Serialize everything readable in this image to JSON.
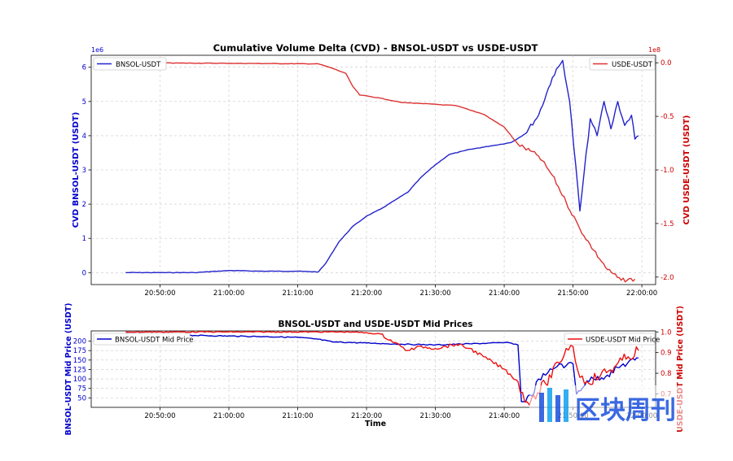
{
  "chart_data": [
    {
      "type": "line",
      "title": "Cumulative Volume Delta (CVD) - BNSOL-USDT vs USDE-USDT",
      "xlabel": "",
      "x_ticks": [
        "20:50:00",
        "21:00:00",
        "21:10:00",
        "21:20:00",
        "21:30:00",
        "21:40:00",
        "21:50:00",
        "22:00:00"
      ],
      "xlim": [
        "20:40:00",
        "22:02:00"
      ],
      "left_axis": {
        "ylabel": "CVD BNSOL-USDT (USDT)",
        "multiplier": "1e6",
        "ylim": [
          -0.35,
          6.35
        ],
        "ticks": [
          "0",
          "1",
          "2",
          "3",
          "4",
          "5",
          "6"
        ],
        "color": "#0000cc"
      },
      "right_axis": {
        "ylabel": "CVD USDE-USDT (USDT)",
        "multiplier": "1e8",
        "ylim": [
          -2.07,
          0.07
        ],
        "ticks": [
          "0.0",
          "-0.5",
          "-1.0",
          "-1.5",
          "-2.0"
        ],
        "color": "#cc0000"
      },
      "series": [
        {
          "name": "BNSOL-USDT",
          "axis": "left",
          "color": "#2222cc",
          "legend": "top-left",
          "points": [
            [
              "20:45:00",
              0.0
            ],
            [
              "20:55:00",
              0.0
            ],
            [
              "21:00:00",
              0.06
            ],
            [
              "21:05:00",
              0.04
            ],
            [
              "21:10:00",
              0.04
            ],
            [
              "21:13:00",
              0.02
            ],
            [
              "21:14:00",
              0.25
            ],
            [
              "21:16:00",
              0.9
            ],
            [
              "21:18:00",
              1.35
            ],
            [
              "21:20:00",
              1.65
            ],
            [
              "21:22:00",
              1.85
            ],
            [
              "21:24:00",
              2.1
            ],
            [
              "21:26:00",
              2.35
            ],
            [
              "21:28:00",
              2.8
            ],
            [
              "21:30:00",
              3.15
            ],
            [
              "21:32:00",
              3.45
            ],
            [
              "21:35:00",
              3.6
            ],
            [
              "21:38:00",
              3.7
            ],
            [
              "21:41:00",
              3.8
            ],
            [
              "21:43:00",
              4.05
            ],
            [
              "21:45:00",
              4.6
            ],
            [
              "21:47:00",
              5.7
            ],
            [
              "21:48:30",
              6.2
            ],
            [
              "21:49:30",
              5.0
            ],
            [
              "21:51:00",
              1.8
            ],
            [
              "21:52:30",
              4.5
            ],
            [
              "21:53:30",
              4.0
            ],
            [
              "21:54:30",
              5.0
            ],
            [
              "21:55:30",
              4.2
            ],
            [
              "21:56:30",
              5.0
            ],
            [
              "21:57:30",
              4.3
            ],
            [
              "21:58:30",
              4.6
            ],
            [
              "21:59:00",
              3.9
            ],
            [
              "21:59:30",
              4.0
            ]
          ]
        },
        {
          "name": "USDE-USDT",
          "axis": "right",
          "color": "#dd3333",
          "legend": "top-right",
          "points": [
            [
              "20:45:00",
              0.0
            ],
            [
              "21:00:00",
              -0.005
            ],
            [
              "21:13:00",
              -0.01
            ],
            [
              "21:15:00",
              -0.05
            ],
            [
              "21:17:00",
              -0.1
            ],
            [
              "21:18:00",
              -0.22
            ],
            [
              "21:19:00",
              -0.3
            ],
            [
              "21:22:00",
              -0.33
            ],
            [
              "21:25:00",
              -0.37
            ],
            [
              "21:28:00",
              -0.38
            ],
            [
              "21:33:00",
              -0.4
            ],
            [
              "21:37:00",
              -0.48
            ],
            [
              "21:40:00",
              -0.6
            ],
            [
              "21:42:00",
              -0.76
            ],
            [
              "21:45:00",
              -0.87
            ],
            [
              "21:47:00",
              -1.05
            ],
            [
              "21:49:00",
              -1.3
            ],
            [
              "21:51:00",
              -1.55
            ],
            [
              "21:53:00",
              -1.75
            ],
            [
              "21:55:00",
              -1.93
            ],
            [
              "21:57:00",
              -2.03
            ],
            [
              "21:59:00",
              -2.02
            ]
          ]
        }
      ]
    },
    {
      "type": "line",
      "title": "BNSOL-USDT and USDE-USDT Mid Prices",
      "xlabel": "Time",
      "x_ticks": [
        "20:50:00",
        "21:00:00",
        "21:10:00",
        "21:20:00",
        "21:30:00",
        "21:40:00",
        "21:50:00",
        "22:00:00"
      ],
      "xlim": [
        "20:40:00",
        "22:02:00"
      ],
      "left_axis": {
        "ylabel": "BNSOL-USDT Mid Price (USDT)",
        "ylim": [
          25,
          227
        ],
        "ticks": [
          "50",
          "75",
          "100",
          "125",
          "150",
          "175",
          "200"
        ],
        "color": "#0000cc"
      },
      "right_axis": {
        "ylabel": "USDE-USDT Mid Price (USDT)",
        "ylim": [
          0.635,
          1.005
        ],
        "ticks": [
          "0.7",
          "0.8",
          "0.9",
          "1.0"
        ],
        "color": "#cc0000"
      },
      "series": [
        {
          "name": "BNSOL-USDT Mid Price",
          "axis": "left",
          "color": "#0000cc",
          "legend": "top-left",
          "points": [
            [
              "20:45:00",
              220
            ],
            [
              "20:55:00",
              215
            ],
            [
              "21:05:00",
              212
            ],
            [
              "21:10:00",
              210
            ],
            [
              "21:13:00",
              205
            ],
            [
              "21:15:00",
              198
            ],
            [
              "21:20:00",
              195
            ],
            [
              "21:25:00",
              192
            ],
            [
              "21:30:00",
              190
            ],
            [
              "21:35:00",
              193
            ],
            [
              "21:40:00",
              196
            ],
            [
              "21:41:00",
              195
            ],
            [
              "21:42:00",
              190
            ],
            [
              "21:42:30",
              40
            ],
            [
              "21:44:00",
              55
            ],
            [
              "21:45:00",
              100
            ],
            [
              "21:46:00",
              110
            ],
            [
              "21:47:00",
              125
            ],
            [
              "21:48:00",
              140
            ],
            [
              "21:49:00",
              135
            ],
            [
              "21:50:00",
              140
            ],
            [
              "21:50:30",
              60
            ],
            [
              "21:52:00",
              95
            ],
            [
              "21:53:00",
              100
            ],
            [
              "21:55:00",
              110
            ],
            [
              "21:57:00",
              135
            ],
            [
              "21:59:00",
              150
            ],
            [
              "21:59:30",
              155
            ]
          ]
        },
        {
          "name": "USDE-USDT Mid Price",
          "axis": "right",
          "color": "#ee1111",
          "legend": "top-right",
          "points": [
            [
              "20:45:00",
              1.0
            ],
            [
              "21:18:00",
              1.0
            ],
            [
              "21:22:00",
              0.99
            ],
            [
              "21:25:00",
              0.93
            ],
            [
              "21:26:00",
              0.91
            ],
            [
              "21:28:00",
              0.93
            ],
            [
              "21:30:00",
              0.92
            ],
            [
              "21:33:00",
              0.94
            ],
            [
              "21:35:00",
              0.92
            ],
            [
              "21:37:00",
              0.88
            ],
            [
              "21:40:00",
              0.82
            ],
            [
              "21:42:00",
              0.76
            ],
            [
              "21:43:00",
              0.66
            ],
            [
              "21:44:00",
              0.68
            ],
            [
              "21:46:00",
              0.75
            ],
            [
              "21:48:00",
              0.85
            ],
            [
              "21:49:00",
              0.92
            ],
            [
              "21:50:00",
              0.93
            ],
            [
              "21:51:00",
              0.78
            ],
            [
              "21:52:00",
              0.76
            ],
            [
              "21:54:00",
              0.79
            ],
            [
              "21:56:00",
              0.83
            ],
            [
              "21:58:00",
              0.88
            ],
            [
              "21:59:30",
              0.91
            ]
          ]
        }
      ]
    }
  ],
  "watermark": {
    "text": "区块周刊",
    "colors": [
      "#2a5de0",
      "#22a8f0"
    ],
    "icon": "bar-logo-icon"
  }
}
